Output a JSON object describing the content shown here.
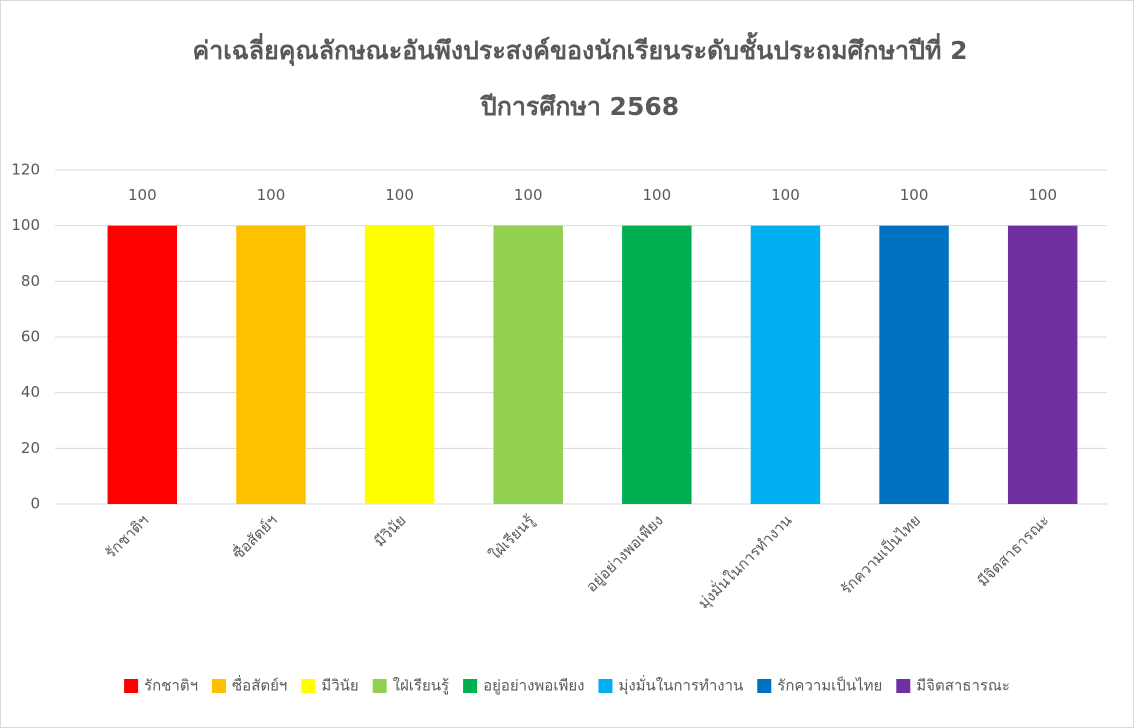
{
  "chart_data": {
    "type": "bar",
    "title": "ค่าเฉลี่ยคุณลักษณะอันพึงประสงค์ของนักเรียนระดับชั้นประถมศึกษาปีที่ 2",
    "subtitle": "ปีการศึกษา 2568",
    "categories": [
      "รักชาติฯ",
      "ซื่อสัตย์ฯ",
      "มีวินัย",
      "ใฝ่เรียนรู้",
      "อยู่อย่างพอเพียง",
      "มุ่งมั่นในการทำงาน",
      "รักความเป็นไทย",
      "มีจิตสาธารณะ"
    ],
    "values": [
      100,
      100,
      100,
      100,
      100,
      100,
      100,
      100
    ],
    "colors": [
      "#ff0000",
      "#ffc000",
      "#ffff00",
      "#92d050",
      "#00b050",
      "#00b0f0",
      "#0070c0",
      "#7030a0"
    ],
    "ylim": [
      0,
      120
    ],
    "yticks": [
      0,
      20,
      40,
      60,
      80,
      100,
      120
    ],
    "grid": true,
    "legend": "bottom"
  }
}
